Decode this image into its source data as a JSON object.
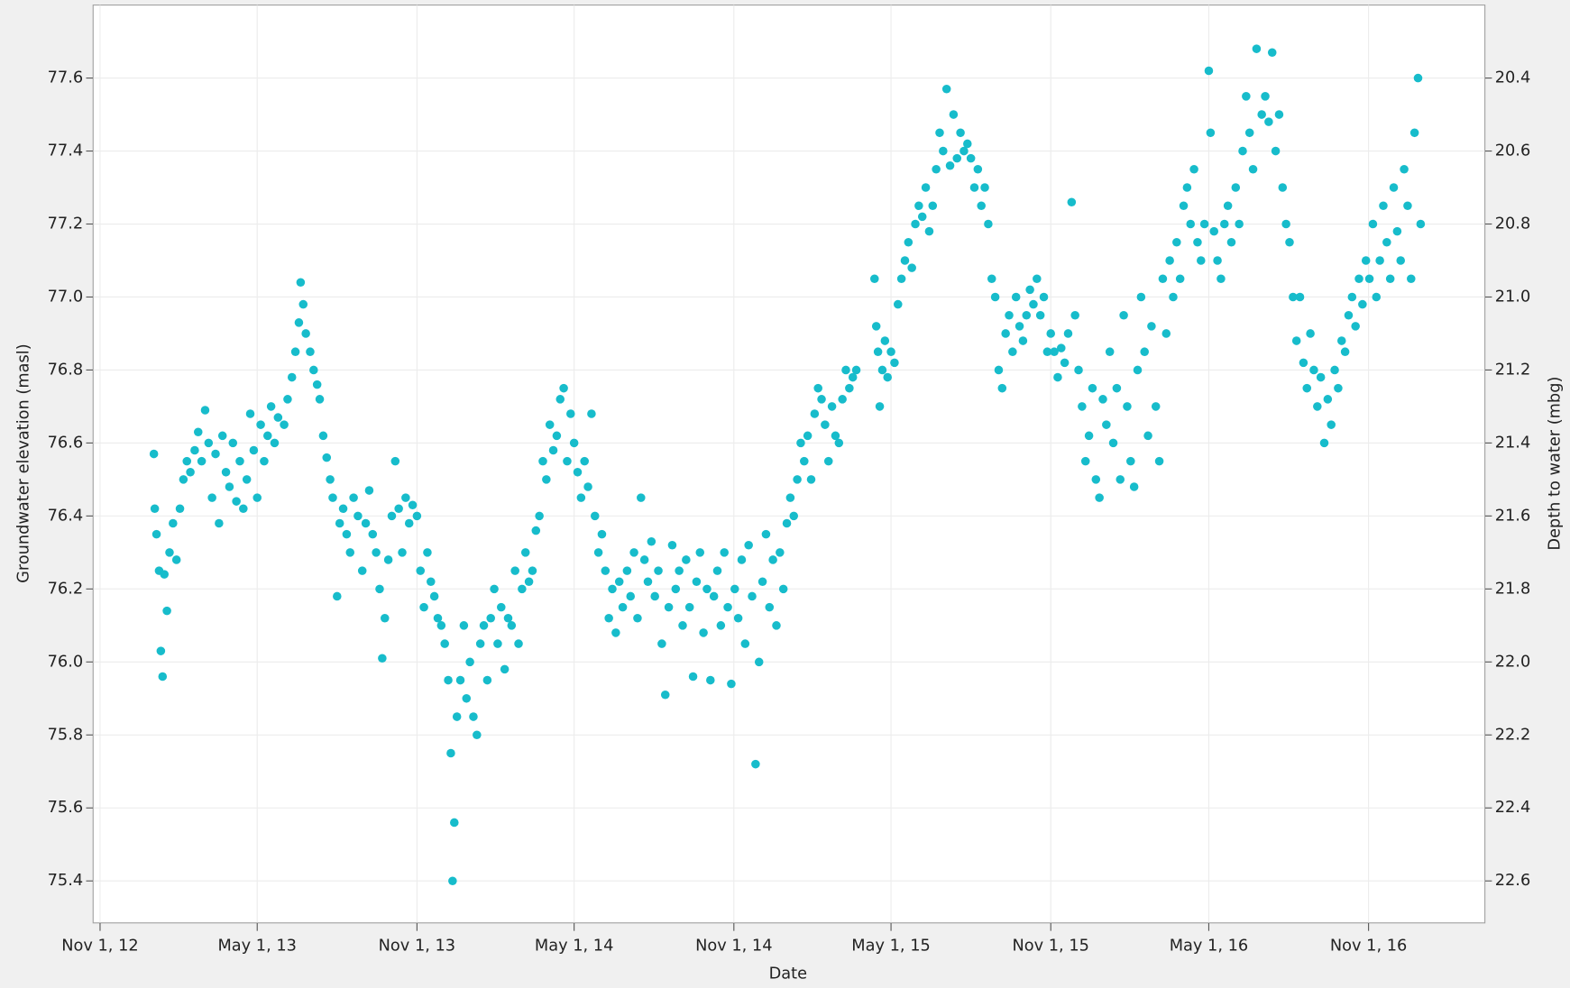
{
  "chart_data": {
    "type": "scatter",
    "xlabel": "Date",
    "ylabel": "Groundwater elevation (masl)",
    "y2label": "Depth to water (mbg)",
    "color": "#17bccb",
    "grid": true,
    "xlim": [
      "2012-10-24",
      "2017-03-15"
    ],
    "xticks": [
      {
        "value": "2012-11-01",
        "label": "Nov 1, 12"
      },
      {
        "value": "2013-05-01",
        "label": "May 1, 13"
      },
      {
        "value": "2013-11-01",
        "label": "Nov 1, 13"
      },
      {
        "value": "2014-05-01",
        "label": "May 1, 14"
      },
      {
        "value": "2014-11-01",
        "label": "Nov 1, 14"
      },
      {
        "value": "2015-05-01",
        "label": "May 1, 15"
      },
      {
        "value": "2015-11-01",
        "label": "Nov 1, 15"
      },
      {
        "value": "2016-05-01",
        "label": "May 1, 16"
      },
      {
        "value": "2016-11-01",
        "label": "Nov 1, 16"
      }
    ],
    "ylim": [
      75.285,
      77.8
    ],
    "yticks": [
      75.4,
      75.6,
      75.8,
      {
        "value": 76,
        "label": "76.0"
      },
      76.2,
      76.4,
      76.6,
      76.8,
      {
        "value": 77,
        "label": "77.0"
      },
      77.2,
      77.4,
      77.6
    ],
    "y2lim": [
      22.715,
      20.2
    ],
    "y2ticks": [
      22.6,
      22.4,
      22.2,
      {
        "value": 22,
        "label": "22.0"
      },
      21.8,
      21.6,
      21.4,
      21.2,
      {
        "value": 21,
        "label": "21.0"
      },
      20.8,
      20.6,
      20.4
    ],
    "x": [
      "2013-01-02",
      "2013-01-03",
      "2013-01-05",
      "2013-01-08",
      "2013-01-10",
      "2013-01-12",
      "2013-01-14",
      "2013-01-17",
      "2013-01-20",
      "2013-01-24",
      "2013-01-28",
      "2013-02-01",
      "2013-02-05",
      "2013-02-09",
      "2013-02-13",
      "2013-02-18",
      "2013-02-22",
      "2013-02-26",
      "2013-03-02",
      "2013-03-06",
      "2013-03-10",
      "2013-03-14",
      "2013-03-18",
      "2013-03-22",
      "2013-03-26",
      "2013-03-30",
      "2013-04-03",
      "2013-04-07",
      "2013-04-11",
      "2013-04-15",
      "2013-04-19",
      "2013-04-23",
      "2013-04-27",
      "2013-05-01",
      "2013-05-05",
      "2013-05-09",
      "2013-05-13",
      "2013-05-17",
      "2013-05-21",
      "2013-05-25",
      "2013-06-01",
      "2013-06-05",
      "2013-06-10",
      "2013-06-14",
      "2013-06-18",
      "2013-06-20",
      "2013-06-23",
      "2013-06-26",
      "2013-07-01",
      "2013-07-05",
      "2013-07-09",
      "2013-07-12",
      "2013-07-16",
      "2013-07-20",
      "2013-07-24",
      "2013-07-27",
      "2013-08-01",
      "2013-08-04",
      "2013-08-08",
      "2013-08-12",
      "2013-08-16",
      "2013-08-20",
      "2013-08-25",
      "2013-08-30",
      "2013-09-03",
      "2013-09-07",
      "2013-09-11",
      "2013-09-15",
      "2013-09-19",
      "2013-09-22",
      "2013-09-25",
      "2013-09-29",
      "2013-10-03",
      "2013-10-07",
      "2013-10-11",
      "2013-10-15",
      "2013-10-19",
      "2013-10-23",
      "2013-10-27",
      "2013-11-01",
      "2013-11-05",
      "2013-11-09",
      "2013-11-13",
      "2013-11-17",
      "2013-11-21",
      "2013-11-25",
      "2013-11-29",
      "2013-12-03",
      "2013-12-07",
      "2013-12-10",
      "2013-12-12",
      "2013-12-14",
      "2013-12-17",
      "2013-12-21",
      "2013-12-25",
      "2013-12-28",
      "2014-01-01",
      "2014-01-05",
      "2014-01-09",
      "2014-01-13",
      "2014-01-17",
      "2014-01-21",
      "2014-01-25",
      "2014-01-29",
      "2014-02-02",
      "2014-02-06",
      "2014-02-10",
      "2014-02-14",
      "2014-02-18",
      "2014-02-22",
      "2014-02-26",
      "2014-03-02",
      "2014-03-06",
      "2014-03-10",
      "2014-03-14",
      "2014-03-18",
      "2014-03-22",
      "2014-03-26",
      "2014-03-30",
      "2014-04-03",
      "2014-04-07",
      "2014-04-11",
      "2014-04-15",
      "2014-04-19",
      "2014-04-23",
      "2014-04-27",
      "2014-05-01",
      "2014-05-05",
      "2014-05-09",
      "2014-05-13",
      "2014-05-17",
      "2014-05-21",
      "2014-05-25",
      "2014-05-29",
      "2014-06-02",
      "2014-06-06",
      "2014-06-10",
      "2014-06-14",
      "2014-06-18",
      "2014-06-22",
      "2014-06-26",
      "2014-07-01",
      "2014-07-05",
      "2014-07-09",
      "2014-07-13",
      "2014-07-17",
      "2014-07-21",
      "2014-07-25",
      "2014-07-29",
      "2014-08-02",
      "2014-08-06",
      "2014-08-10",
      "2014-08-14",
      "2014-08-18",
      "2014-08-22",
      "2014-08-26",
      "2014-08-30",
      "2014-09-03",
      "2014-09-07",
      "2014-09-11",
      "2014-09-15",
      "2014-09-19",
      "2014-09-23",
      "2014-09-27",
      "2014-10-01",
      "2014-10-05",
      "2014-10-09",
      "2014-10-13",
      "2014-10-17",
      "2014-10-21",
      "2014-10-25",
      "2014-10-29",
      "2014-11-02",
      "2014-11-06",
      "2014-11-10",
      "2014-11-14",
      "2014-11-18",
      "2014-11-22",
      "2014-11-26",
      "2014-11-30",
      "2014-12-04",
      "2014-12-08",
      "2014-12-12",
      "2014-12-16",
      "2014-12-20",
      "2014-12-24",
      "2014-12-28",
      "2015-01-01",
      "2015-01-05",
      "2015-01-09",
      "2015-01-13",
      "2015-01-17",
      "2015-01-21",
      "2015-01-25",
      "2015-01-29",
      "2015-02-02",
      "2015-02-06",
      "2015-02-10",
      "2015-02-14",
      "2015-02-18",
      "2015-02-22",
      "2015-02-26",
      "2015-03-02",
      "2015-03-06",
      "2015-03-10",
      "2015-03-14",
      "2015-03-18",
      "2015-03-22",
      "2015-04-12",
      "2015-04-14",
      "2015-04-16",
      "2015-04-18",
      "2015-04-21",
      "2015-04-24",
      "2015-04-27",
      "2015-05-01",
      "2015-05-05",
      "2015-05-09",
      "2015-05-13",
      "2015-05-17",
      "2015-05-21",
      "2015-05-25",
      "2015-05-29",
      "2015-06-02",
      "2015-06-06",
      "2015-06-10",
      "2015-06-14",
      "2015-06-18",
      "2015-06-22",
      "2015-06-26",
      "2015-06-30",
      "2015-07-04",
      "2015-07-08",
      "2015-07-12",
      "2015-07-16",
      "2015-07-20",
      "2015-07-24",
      "2015-07-28",
      "2015-08-01",
      "2015-08-05",
      "2015-08-09",
      "2015-08-13",
      "2015-08-17",
      "2015-08-21",
      "2015-08-25",
      "2015-08-29",
      "2015-09-02",
      "2015-09-06",
      "2015-09-10",
      "2015-09-14",
      "2015-09-18",
      "2015-09-22",
      "2015-09-26",
      "2015-09-30",
      "2015-10-04",
      "2015-10-08",
      "2015-10-12",
      "2015-10-16",
      "2015-10-20",
      "2015-10-24",
      "2015-10-28",
      "2015-11-01",
      "2015-11-05",
      "2015-11-09",
      "2015-11-13",
      "2015-11-17",
      "2015-11-21",
      "2015-11-25",
      "2015-11-29",
      "2015-12-03",
      "2015-12-07",
      "2015-12-11",
      "2015-12-15",
      "2015-12-19",
      "2015-12-23",
      "2015-12-27",
      "2015-12-31",
      "2016-01-04",
      "2016-01-08",
      "2016-01-12",
      "2016-01-16",
      "2016-01-20",
      "2016-01-24",
      "2016-01-28",
      "2016-02-01",
      "2016-02-05",
      "2016-02-09",
      "2016-02-13",
      "2016-02-17",
      "2016-02-21",
      "2016-02-25",
      "2016-03-01",
      "2016-03-05",
      "2016-03-09",
      "2016-03-13",
      "2016-03-17",
      "2016-03-21",
      "2016-03-25",
      "2016-03-29",
      "2016-04-02",
      "2016-04-06",
      "2016-04-10",
      "2016-04-14",
      "2016-04-18",
      "2016-04-22",
      "2016-04-26",
      "2016-05-01",
      "2016-05-03",
      "2016-05-07",
      "2016-05-11",
      "2016-05-15",
      "2016-05-19",
      "2016-05-23",
      "2016-05-27",
      "2016-06-01",
      "2016-06-05",
      "2016-06-09",
      "2016-06-13",
      "2016-06-17",
      "2016-06-21",
      "2016-06-25",
      "2016-07-01",
      "2016-07-05",
      "2016-07-09",
      "2016-07-13",
      "2016-07-17",
      "2016-07-21",
      "2016-07-25",
      "2016-07-29",
      "2016-08-02",
      "2016-08-06",
      "2016-08-10",
      "2016-08-14",
      "2016-08-18",
      "2016-08-22",
      "2016-08-26",
      "2016-08-30",
      "2016-09-03",
      "2016-09-07",
      "2016-09-11",
      "2016-09-15",
      "2016-09-19",
      "2016-09-23",
      "2016-09-27",
      "2016-10-01",
      "2016-10-05",
      "2016-10-09",
      "2016-10-13",
      "2016-10-17",
      "2016-10-21",
      "2016-10-25",
      "2016-10-29",
      "2016-11-02",
      "2016-11-06",
      "2016-11-10",
      "2016-11-14",
      "2016-11-18",
      "2016-11-22",
      "2016-11-26",
      "2016-11-30",
      "2016-12-04",
      "2016-12-08",
      "2016-12-12",
      "2016-12-16",
      "2016-12-20",
      "2016-12-24",
      "2016-12-28",
      "2016-12-31"
    ],
    "values": [
      76.57,
      76.42,
      76.35,
      76.25,
      76.03,
      75.96,
      76.24,
      76.14,
      76.3,
      76.38,
      76.28,
      76.42,
      76.5,
      76.55,
      76.52,
      76.58,
      76.63,
      76.55,
      76.69,
      76.6,
      76.45,
      76.57,
      76.38,
      76.62,
      76.52,
      76.48,
      76.6,
      76.44,
      76.55,
      76.42,
      76.5,
      76.68,
      76.58,
      76.45,
      76.65,
      76.55,
      76.62,
      76.7,
      76.6,
      76.67,
      76.65,
      76.72,
      76.78,
      76.85,
      76.93,
      77.04,
      76.98,
      76.9,
      76.85,
      76.8,
      76.76,
      76.72,
      76.62,
      76.56,
      76.5,
      76.45,
      76.18,
      76.38,
      76.42,
      76.35,
      76.3,
      76.45,
      76.4,
      76.25,
      76.38,
      76.47,
      76.35,
      76.3,
      76.2,
      76.01,
      76.12,
      76.28,
      76.4,
      76.55,
      76.42,
      76.3,
      76.45,
      76.38,
      76.43,
      76.4,
      76.25,
      76.15,
      76.3,
      76.22,
      76.18,
      76.12,
      76.1,
      76.05,
      75.95,
      75.75,
      75.4,
      75.56,
      75.85,
      75.95,
      76.1,
      75.9,
      76.0,
      75.85,
      75.8,
      76.05,
      76.1,
      75.95,
      76.12,
      76.2,
      76.05,
      76.15,
      75.98,
      76.12,
      76.1,
      76.25,
      76.05,
      76.2,
      76.3,
      76.22,
      76.25,
      76.36,
      76.4,
      76.55,
      76.5,
      76.65,
      76.58,
      76.62,
      76.72,
      76.75,
      76.55,
      76.68,
      76.6,
      76.52,
      76.45,
      76.55,
      76.48,
      76.68,
      76.4,
      76.3,
      76.35,
      76.25,
      76.12,
      76.2,
      76.08,
      76.22,
      76.15,
      76.25,
      76.18,
      76.3,
      76.12,
      76.45,
      76.28,
      76.22,
      76.33,
      76.18,
      76.25,
      76.05,
      75.91,
      76.15,
      76.32,
      76.2,
      76.25,
      76.1,
      76.28,
      76.15,
      75.96,
      76.22,
      76.3,
      76.08,
      76.2,
      75.95,
      76.18,
      76.25,
      76.1,
      76.3,
      76.15,
      75.94,
      76.2,
      76.12,
      76.28,
      76.05,
      76.32,
      76.18,
      75.72,
      76.0,
      76.22,
      76.35,
      76.15,
      76.28,
      76.1,
      76.3,
      76.2,
      76.38,
      76.45,
      76.4,
      76.5,
      76.6,
      76.55,
      76.62,
      76.5,
      76.68,
      76.75,
      76.72,
      76.65,
      76.55,
      76.7,
      76.62,
      76.6,
      76.72,
      76.8,
      76.75,
      76.78,
      76.8,
      77.05,
      76.92,
      76.85,
      76.7,
      76.8,
      76.88,
      76.78,
      76.85,
      76.82,
      76.98,
      77.05,
      77.1,
      77.15,
      77.08,
      77.2,
      77.25,
      77.22,
      77.3,
      77.18,
      77.25,
      77.35,
      77.45,
      77.4,
      77.57,
      77.36,
      77.5,
      77.38,
      77.45,
      77.4,
      77.42,
      77.38,
      77.3,
      77.35,
      77.25,
      77.3,
      77.2,
      77.05,
      77.0,
      76.8,
      76.75,
      76.9,
      76.95,
      76.85,
      77.0,
      76.92,
      76.88,
      76.95,
      77.02,
      76.98,
      77.05,
      76.95,
      77.0,
      76.85,
      76.9,
      76.85,
      76.78,
      76.86,
      76.82,
      76.9,
      77.26,
      76.95,
      76.8,
      76.7,
      76.55,
      76.62,
      76.75,
      76.5,
      76.45,
      76.72,
      76.65,
      76.85,
      76.6,
      76.75,
      76.5,
      76.95,
      76.7,
      76.55,
      76.48,
      76.8,
      77.0,
      76.85,
      76.62,
      76.92,
      76.7,
      76.55,
      77.05,
      76.9,
      77.1,
      77.0,
      77.15,
      77.05,
      77.25,
      77.3,
      77.2,
      77.35,
      77.15,
      77.1,
      77.2,
      77.62,
      77.45,
      77.18,
      77.1,
      77.05,
      77.2,
      77.25,
      77.15,
      77.3,
      77.2,
      77.4,
      77.55,
      77.45,
      77.35,
      77.68,
      77.5,
      77.55,
      77.48,
      77.67,
      77.4,
      77.5,
      77.3,
      77.2,
      77.15,
      77.0,
      76.88,
      77.0,
      76.82,
      76.75,
      76.9,
      76.8,
      76.7,
      76.78,
      76.6,
      76.72,
      76.65,
      76.8,
      76.75,
      76.88,
      76.85,
      76.95,
      77.0,
      76.92,
      77.05,
      76.98,
      77.1,
      77.05,
      77.2,
      77.0,
      77.1,
      77.25,
      77.15,
      77.05,
      77.3,
      77.18,
      77.1,
      77.35,
      77.25,
      77.05,
      77.45,
      77.6,
      77.2
    ]
  }
}
